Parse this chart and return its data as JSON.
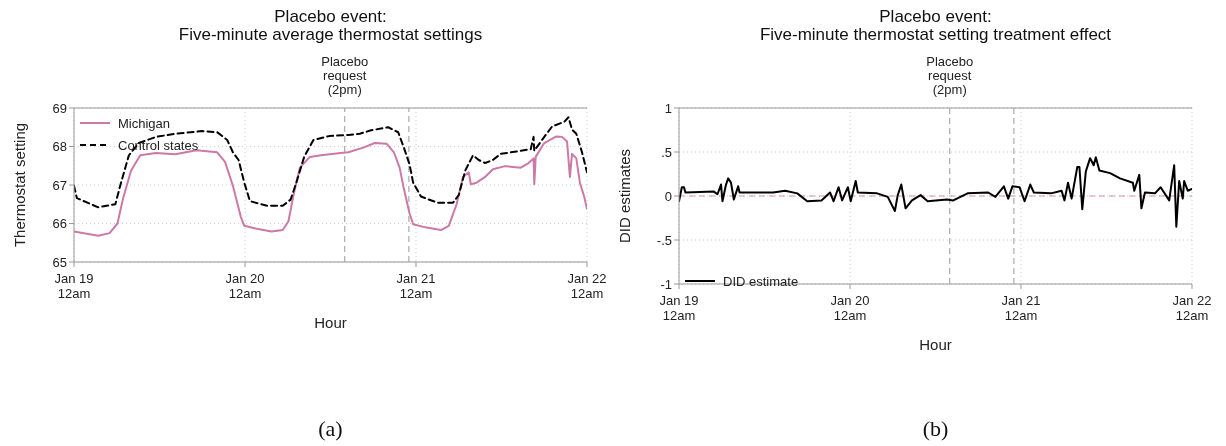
{
  "chart_data": [
    {
      "type": "line",
      "title": "Placebo event:\nFive-minute average thermostat settings",
      "xlabel": "Hour",
      "ylabel": "Thermostat setting",
      "xlim": [
        "--01-19",
        "--01-22"
      ],
      "xticks": [
        {
          "value": "--01-19",
          "label": "Jan 19\n12am"
        },
        {
          "value": "--01-20",
          "label": "Jan 20\n12am"
        },
        {
          "value": "--01-21",
          "label": "Jan 21\n12am"
        },
        {
          "value": "--01-22",
          "label": "Jan 22\n12am"
        }
      ],
      "ylim": [
        65,
        69
      ],
      "yticks": [
        65,
        66,
        67,
        68,
        69
      ],
      "grid": true,
      "legend": "top left",
      "series": [
        {
          "name": "Michigan",
          "color": "#cc79a7",
          "line_style": "solid",
          "x": [
            "--01-19T00:00",
            "--01-19T03:24",
            "--01-19T05:00",
            "--01-19T06:06",
            "--01-19T06:54",
            "--01-19T08:00",
            "--01-19T09:18",
            "--01-19T11:30",
            "--01-19T14:12",
            "--01-19T17:12",
            "--01-19T20:06",
            "--01-19T21:12",
            "--01-19T22:18",
            "--01-19T23:24",
            "--01-19T23:54",
            "--01-20T01:30",
            "--01-20T03:42",
            "--01-20T05:18",
            "--01-20T06:06",
            "--01-20T06:54",
            "--01-20T07:42",
            "--01-20T09:06",
            "--01-20T10:42",
            "--01-20T13:24",
            "--01-20T14:30",
            "--01-20T16:36",
            "--01-20T18:12",
            "--01-20T19:54",
            "--01-20T20:54",
            "--01-20T21:42",
            "--01-20T22:18",
            "--01-20T23:06",
            "--01-20T23:36",
            "--01-21T01:18",
            "--01-21T03:30",
            "--01-21T04:36",
            "--01-21T05:42",
            "--01-21T06:36",
            "--01-21T07:24",
            "--01-21T07:42",
            "--01-21T08:30",
            "--01-21T09:42",
            "--01-21T10:48",
            "--01-21T12:30",
            "--01-21T14:42",
            "--01-21T15:48",
            "--01-21T16:30",
            "--01-21T16:36",
            "--01-21T16:48",
            "--01-21T18:00",
            "--01-21T19:42",
            "--01-21T20:30",
            "--01-21T21:12",
            "--01-21T21:36",
            "--01-21T21:54",
            "--01-21T22:30",
            "--01-21T23:00",
            "--01-21T23:36",
            "--01-22T00:00"
          ],
          "values": [
            65.79,
            65.68,
            65.75,
            66,
            66.66,
            67.37,
            67.77,
            67.83,
            67.8,
            67.9,
            67.85,
            67.6,
            66.98,
            66.18,
            65.94,
            65.87,
            65.79,
            65.83,
            66.06,
            66.82,
            67.45,
            67.73,
            67.77,
            67.83,
            67.85,
            67.97,
            68.09,
            68.07,
            67.85,
            67.45,
            66.9,
            66.26,
            65.98,
            65.9,
            65.83,
            65.94,
            66.5,
            67.21,
            67.33,
            67.02,
            67.06,
            67.21,
            67.41,
            67.49,
            67.45,
            67.57,
            67.69,
            67.02,
            67.73,
            68.09,
            68.26,
            68.25,
            68.13,
            67.21,
            67.81,
            67.69,
            67.06,
            66.7,
            66.38
          ]
        },
        {
          "name": "Control states",
          "color": "#000000",
          "line_style": "dashed",
          "x": [
            "--01-19T00:00",
            "--01-19T00:24",
            "--01-19T03:24",
            "--01-19T05:48",
            "--01-19T06:36",
            "--01-19T07:42",
            "--01-19T09:06",
            "--01-19T11:30",
            "--01-19T14:12",
            "--01-19T18:00",
            "--01-19T20:06",
            "--01-19T21:30",
            "--01-19T22:18",
            "--01-19T23:06",
            "--01-19T23:54",
            "--01-20T00:42",
            "--01-20T03:06",
            "--01-20T05:18",
            "--01-20T06:24",
            "--01-20T07:12",
            "--01-20T08:18",
            "--01-20T09:36",
            "--01-20T11:48",
            "--01-20T14:30",
            "--01-20T16:06",
            "--01-20T17:42",
            "--01-20T20:06",
            "--01-20T21:30",
            "--01-20T22:18",
            "--01-20T23:06",
            "--01-20T23:36",
            "--01-21T00:42",
            "--01-21T03:00",
            "--01-21T05:12",
            "--01-21T06:00",
            "--01-21T06:54",
            "--01-21T08:00",
            "--01-21T08:48",
            "--01-21T09:42",
            "--01-21T10:48",
            "--01-21T11:54",
            "--01-21T14:06",
            "--01-21T16:06",
            "--01-21T16:30",
            "--01-21T16:36",
            "--01-21T18:00",
            "--01-21T19:06",
            "--01-21T20:48",
            "--01-21T21:24",
            "--01-21T21:54",
            "--01-21T22:30",
            "--01-21T23:18",
            "--01-22T00:00"
          ],
          "values": [
            66.98,
            66.66,
            66.42,
            66.5,
            67.06,
            67.77,
            68.09,
            68.25,
            68.33,
            68.4,
            68.37,
            68.17,
            67.85,
            67.65,
            67.06,
            66.58,
            66.46,
            66.46,
            66.62,
            67.06,
            67.73,
            68.17,
            68.27,
            68.3,
            68.33,
            68.42,
            68.5,
            68.37,
            67.97,
            67.53,
            67.06,
            66.7,
            66.54,
            66.54,
            66.74,
            67.37,
            67.77,
            67.65,
            67.57,
            67.65,
            67.81,
            67.87,
            67.93,
            68.25,
            67.89,
            68.25,
            68.52,
            68.64,
            68.76,
            68.44,
            68.33,
            67.85,
            67.33
          ]
        }
      ],
      "ref_lines": [
        {
          "axis": "x",
          "value": "--01-20T14:00",
          "label": "Placebo\nrequest\n(2pm)",
          "color": "#999999",
          "line_style": "dashed"
        },
        {
          "axis": "x",
          "value": "--01-20T23:00",
          "label": null,
          "color": "#999999",
          "line_style": "dashed"
        }
      ],
      "annotations": [
        "(a)"
      ]
    },
    {
      "type": "line",
      "title": "Placebo event:\nFive-minute thermostat setting treatment effect",
      "xlabel": "Hour",
      "ylabel": "DID estimates",
      "xlim": [
        "--01-19",
        "--01-22"
      ],
      "xticks": [
        {
          "value": "--01-19",
          "label": "Jan 19\n12am"
        },
        {
          "value": "--01-20",
          "label": "Jan 20\n12am"
        },
        {
          "value": "--01-21",
          "label": "Jan 21\n12am"
        },
        {
          "value": "--01-22",
          "label": "Jan 22\n12am"
        }
      ],
      "ylim": [
        -1,
        1
      ],
      "yticks": [
        -1,
        {
          "value": -0.5,
          "label": "-.5"
        },
        0,
        {
          "value": 0.5,
          "label": ".5"
        },
        1
      ],
      "grid": true,
      "legend": "bottom left",
      "series": [
        {
          "name": "DID estimate",
          "color": "#000000",
          "line_style": "solid",
          "x": [
            "--01-19T00:00",
            "--01-19T00:24",
            "--01-19T00:42",
            "--01-19T00:54",
            "--01-19T04:54",
            "--01-19T05:24",
            "--01-19T05:54",
            "--01-19T06:06",
            "--01-19T06:36",
            "--01-19T06:54",
            "--01-19T07:18",
            "--01-19T07:42",
            "--01-19T08:18",
            "--01-19T08:30",
            "--01-19T11:12",
            "--01-19T13:12",
            "--01-19T14:54",
            "--01-19T16:36",
            "--01-19T18:00",
            "--01-19T20:00",
            "--01-19T21:12",
            "--01-19T21:42",
            "--01-19T22:24",
            "--01-19T22:54",
            "--01-19T23:42",
            "--01-20T00:06",
            "--01-20T00:48",
            "--01-20T01:06",
            "--01-20T03:48",
            "--01-20T05:18",
            "--01-20T06:18",
            "--01-20T06:42",
            "--01-20T07:12",
            "--01-20T07:48",
            "--01-20T08:42",
            "--01-20T09:54",
            "--01-20T10:54",
            "--01-20T13:36",
            "--01-20T14:30",
            "--01-20T16:30",
            "--01-20T19:24",
            "--01-20T20:24",
            "--01-20T21:36",
            "--01-20T22:12",
            "--01-20T22:48",
            "--01-20T23:48",
            "--01-21T00:30",
            "--01-21T01:18",
            "--01-21T01:48",
            "--01-21T04:12",
            "--01-21T05:42",
            "--01-21T06:06",
            "--01-21T06:36",
            "--01-21T07:06",
            "--01-21T07:54",
            "--01-21T08:12",
            "--01-21T08:36",
            "--01-21T09:06",
            "--01-21T09:42",
            "--01-21T10:12",
            "--01-21T10:30",
            "--01-21T11:00",
            "--01-21T12:30",
            "--01-21T13:54",
            "--01-21T15:42",
            "--01-21T15:54",
            "--01-21T16:36",
            "--01-21T16:54",
            "--01-21T17:24",
            "--01-21T18:48",
            "--01-21T19:36",
            "--01-21T20:48",
            "--01-21T21:30",
            "--01-21T21:48",
            "--01-21T22:12",
            "--01-21T22:42",
            "--01-21T22:54",
            "--01-21T23:24",
            "--01-22T00:00"
          ],
          "values": [
            -0.06,
            0.1,
            0.1,
            0.04,
            0.05,
            0.02,
            0.13,
            -0.06,
            0.13,
            0.2,
            0.15,
            -0.04,
            0.11,
            0.04,
            0.04,
            0.04,
            0.06,
            0.03,
            -0.06,
            -0.05,
            0.04,
            -0.06,
            0.1,
            -0.05,
            0.1,
            -0.06,
            0.17,
            0.04,
            0.03,
            -0.01,
            -0.17,
            0.01,
            0.13,
            -0.14,
            -0.05,
            0.01,
            -0.06,
            -0.04,
            -0.05,
            0.03,
            0.04,
            -0.01,
            0.11,
            -0.03,
            0.11,
            0.1,
            -0.06,
            0.13,
            0.04,
            0.03,
            0.06,
            -0.05,
            0.15,
            -0.03,
            0.33,
            0.33,
            -0.15,
            0.28,
            0.43,
            0.35,
            0.44,
            0.29,
            0.26,
            0.2,
            0.15,
            0.06,
            0.24,
            -0.14,
            0.04,
            0.03,
            0.1,
            -0.05,
            0.35,
            -0.35,
            0.17,
            -0.03,
            0.17,
            0.06,
            0.08
          ]
        }
      ],
      "ref_lines": [
        {
          "axis": "y",
          "value": 0,
          "label": null,
          "color": "#d98fb8",
          "line_style": "dashed"
        },
        {
          "axis": "x",
          "value": "--01-20T14:00",
          "label": "Placebo\nrequest\n(2pm)",
          "color": "#999999",
          "line_style": "dashed"
        },
        {
          "axis": "x",
          "value": "--01-20T23:00",
          "label": null,
          "color": "#999999",
          "line_style": "dashed"
        }
      ],
      "annotations": [
        "(b)"
      ]
    }
  ]
}
